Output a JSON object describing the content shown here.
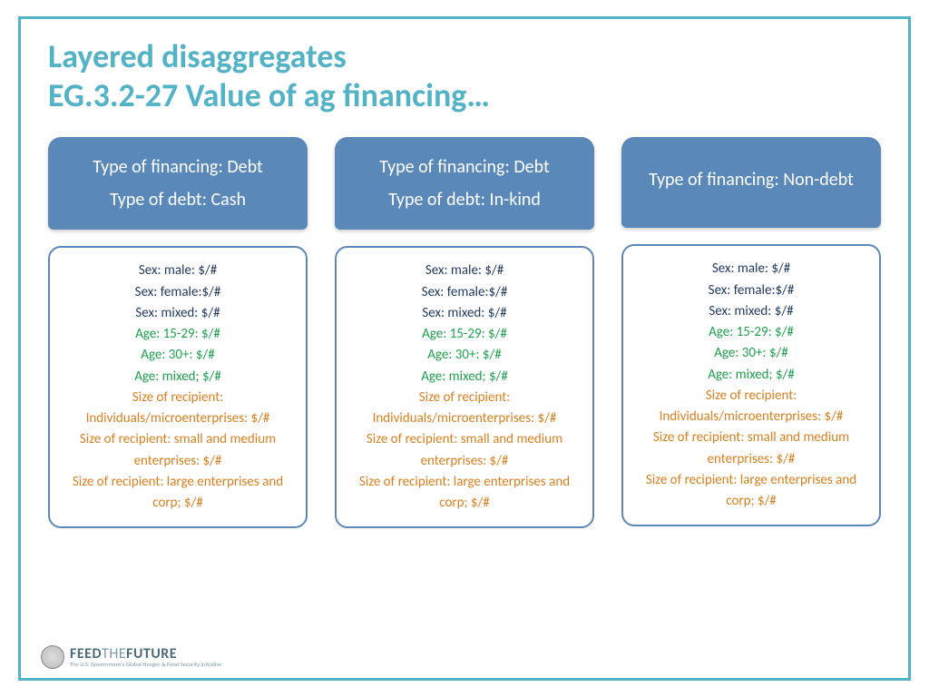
{
  "title": {
    "line1": "Layered disaggregates",
    "line2": "EG.3.2-27 Value of ag financing…"
  },
  "colors": {
    "frame_border": "#52b2c6",
    "title_color": "#52b2c6",
    "header_bg": "#5988b9",
    "header_text": "#ffffff",
    "detail_border": "#5988b9",
    "sex_color": "#223a5e",
    "age_color": "#1fa04e",
    "size_color": "#d9801f"
  },
  "columns": [
    {
      "header": {
        "line1": "Type of financing: Debt",
        "line2": "Type of debt: Cash"
      }
    },
    {
      "header": {
        "line1": "Type of financing: Debt",
        "line2": "Type of debt: In-kind"
      }
    },
    {
      "header": {
        "line1": "Type of financing: Non-debt",
        "line2": ""
      }
    }
  ],
  "detail_lines": {
    "sex": [
      "Sex: male: $/#",
      "Sex: female:$/#",
      "Sex: mixed: $/#"
    ],
    "age": [
      "Age: 15-29: $/#",
      "Age: 30+: $/#",
      "Age: mixed; $/#"
    ],
    "size": [
      "Size of recipient: Individuals/microenterprises: $/#",
      "Size of recipient: small and medium enterprises: $/#",
      "Size of recipient: large enterprises and corp; $/#"
    ]
  },
  "footer": {
    "logo_main_a": "FEED",
    "logo_main_b": "THE",
    "logo_main_c": "FUTURE",
    "logo_sub": "The U.S. Government's Global Hunger & Food Security Initiative"
  }
}
